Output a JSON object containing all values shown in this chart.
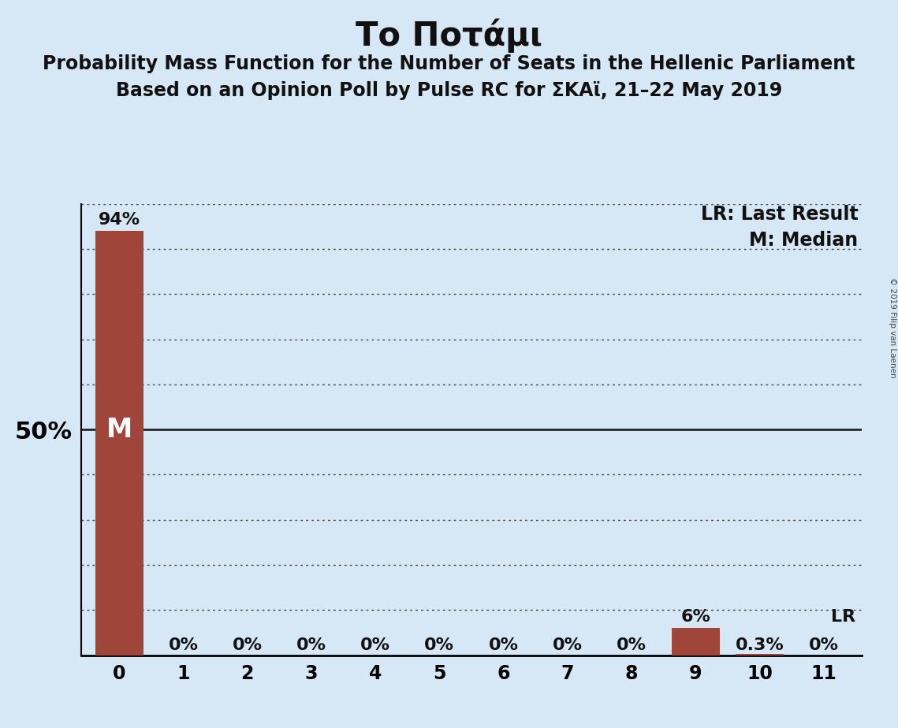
{
  "title": "Το Ποτάμι",
  "subtitle1": "Probability Mass Function for the Number of Seats in the Hellenic Parliament",
  "subtitle2": "Based on an Opinion Poll by Pulse RC for ΣΚΑϊ, 21–22 May 2019",
  "copyright": "© 2019 Filip van Laenen",
  "categories": [
    0,
    1,
    2,
    3,
    4,
    5,
    6,
    7,
    8,
    9,
    10,
    11
  ],
  "values": [
    0.94,
    0.0,
    0.0,
    0.0,
    0.0,
    0.0,
    0.0,
    0.0,
    0.0,
    0.06,
    0.003,
    0.0
  ],
  "bar_color": "#a0453a",
  "background_color": "#d6e8f5",
  "ylim": [
    0,
    1.0
  ],
  "median_idx": 0,
  "last_result_idx": 9,
  "bar_labels": [
    "94%",
    "0%",
    "0%",
    "0%",
    "0%",
    "0%",
    "0%",
    "0%",
    "0%",
    "6%",
    "0.3%",
    "0%"
  ],
  "median_label": "M",
  "lr_label": "LR",
  "legend_lr": "LR: Last Result",
  "legend_m": "M: Median",
  "title_fontsize": 30,
  "subtitle_fontsize": 17,
  "label_fontsize": 16,
  "tick_fontsize": 17,
  "ytick_fontsize": 22
}
